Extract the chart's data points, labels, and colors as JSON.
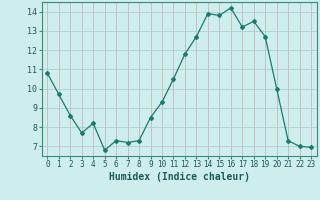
{
  "x": [
    0,
    1,
    2,
    3,
    4,
    5,
    6,
    7,
    8,
    9,
    10,
    11,
    12,
    13,
    14,
    15,
    16,
    17,
    18,
    19,
    20,
    21,
    22,
    23
  ],
  "y": [
    10.8,
    9.7,
    8.6,
    7.7,
    8.2,
    6.8,
    7.3,
    7.2,
    7.3,
    8.5,
    9.3,
    10.5,
    11.8,
    12.7,
    13.9,
    13.8,
    14.2,
    13.2,
    13.5,
    12.7,
    10.0,
    7.3,
    7.0,
    6.95
  ],
  "line_color": "#1a7a6e",
  "marker": "D",
  "marker_size": 2,
  "bg_color": "#ceeeed",
  "grid_v_color": "#c9a8a8",
  "grid_h_color": "#a8c9c9",
  "xlabel": "Humidex (Indice chaleur)",
  "xlabel_color": "#1a5a5a",
  "tick_color": "#1a5a5a",
  "spine_color": "#3a8a7a",
  "ylim": [
    6.5,
    14.5
  ],
  "xlim": [
    -0.5,
    23.5
  ],
  "yticks": [
    7,
    8,
    9,
    10,
    11,
    12,
    13,
    14
  ],
  "xticks": [
    0,
    1,
    2,
    3,
    4,
    5,
    6,
    7,
    8,
    9,
    10,
    11,
    12,
    13,
    14,
    15,
    16,
    17,
    18,
    19,
    20,
    21,
    22,
    23
  ],
  "xlabel_fontsize": 7,
  "tick_fontsize": 5.5
}
